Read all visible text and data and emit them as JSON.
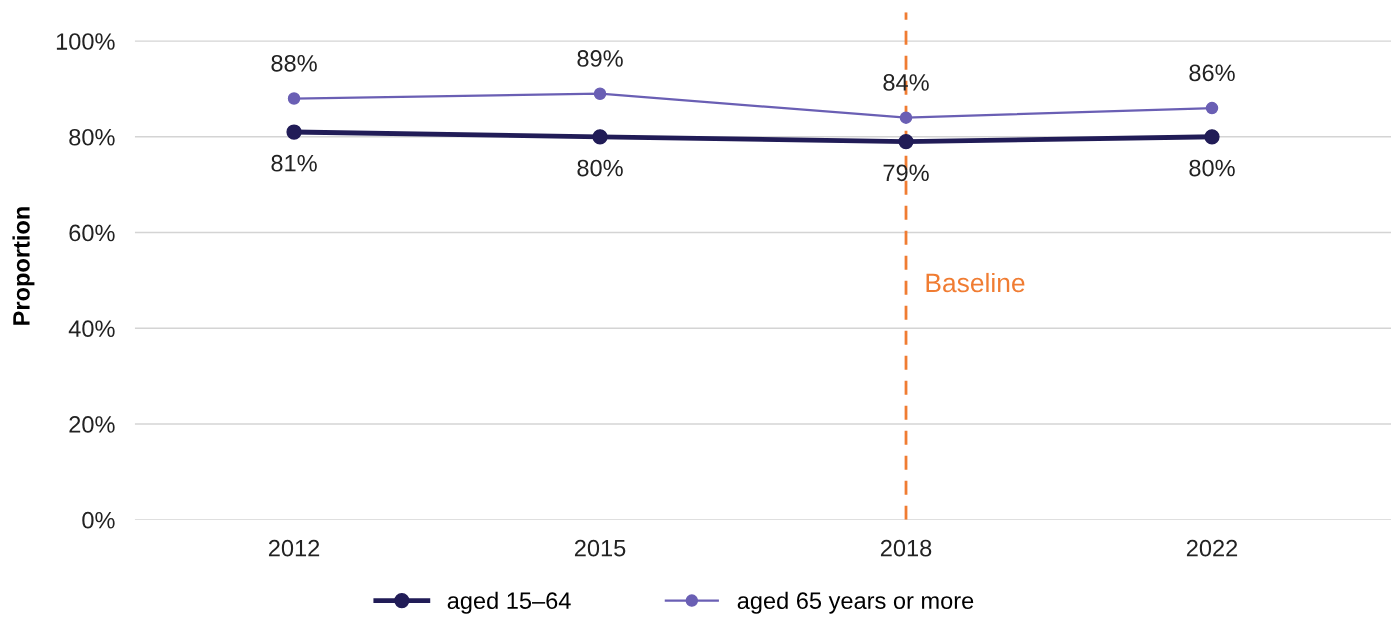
{
  "chart_data": {
    "type": "line",
    "ylabel": "Proportion",
    "categories": [
      "2012",
      "2015",
      "2018",
      "2022"
    ],
    "series": [
      {
        "name": "aged 15–64",
        "color": "#211c57",
        "values": [
          81,
          80,
          79,
          80
        ],
        "value_labels": [
          "81%",
          "80%",
          "79%",
          "80%"
        ]
      },
      {
        "name": "aged 65 years or more",
        "color": "#6a5fb4",
        "values": [
          88,
          89,
          84,
          86
        ],
        "value_labels": [
          "88%",
          "89%",
          "84%",
          "86%"
        ]
      }
    ],
    "ylim": [
      0,
      106
    ],
    "yticks": [
      {
        "value": 0,
        "label": "0%"
      },
      {
        "value": 20,
        "label": "20%"
      },
      {
        "value": 40,
        "label": "40%"
      },
      {
        "value": 60,
        "label": "60%"
      },
      {
        "value": 80,
        "label": "80%"
      },
      {
        "value": 100,
        "label": "100%"
      }
    ],
    "ref_lines": [
      {
        "axis": "x",
        "value": "2018",
        "label": "Baseline",
        "color": "#f07c32",
        "line_style": "dashed"
      }
    ],
    "grid": "y",
    "legend": "bottom",
    "marker": "circle",
    "line_style": "solid"
  }
}
